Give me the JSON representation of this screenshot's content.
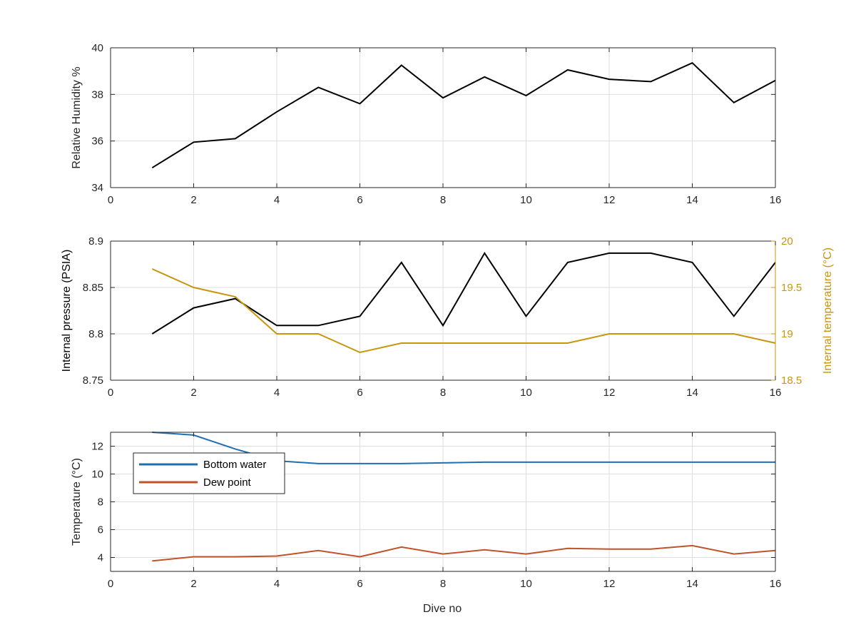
{
  "colors": {
    "black": "#000000",
    "gold": "#c8960c",
    "blue": "#1f6fb2",
    "orange": "#c0532a",
    "grid": "#dedede",
    "axis": "#262626"
  },
  "xlabel": "Dive no",
  "chart_data": [
    {
      "type": "line",
      "x": [
        1,
        2,
        3,
        4,
        5,
        6,
        7,
        8,
        9,
        10,
        11,
        12,
        13,
        14,
        15,
        16
      ],
      "xlim": [
        0,
        16
      ],
      "xticks": [
        "0",
        "2",
        "4",
        "6",
        "8",
        "10",
        "12",
        "14",
        "16"
      ],
      "ylabel": "Relative Humidity %",
      "ylim": [
        34,
        40
      ],
      "yticks": [
        "34",
        "36",
        "38",
        "40"
      ],
      "grid": true,
      "series": [
        {
          "color": "#000000",
          "values": [
            34.85,
            35.95,
            36.1,
            37.25,
            38.3,
            37.6,
            39.25,
            37.85,
            38.75,
            37.95,
            39.05,
            38.65,
            38.55,
            39.35,
            37.65,
            38.6
          ]
        }
      ]
    },
    {
      "type": "line",
      "x": [
        1,
        2,
        3,
        4,
        5,
        6,
        7,
        8,
        9,
        10,
        11,
        12,
        13,
        14,
        15,
        16
      ],
      "xlim": [
        0,
        16
      ],
      "xticks": [
        "0",
        "2",
        "4",
        "6",
        "8",
        "10",
        "12",
        "14",
        "16"
      ],
      "ylabel": "Internal pressure (PSIA)",
      "ylim": [
        8.75,
        8.9
      ],
      "yticks": [
        "8.75",
        "8.8",
        "8.85",
        "8.9"
      ],
      "y2label": "Internal temperature (°C)",
      "y2lim": [
        18.5,
        20
      ],
      "y2ticks": [
        "18.5",
        "19",
        "19.5",
        "20"
      ],
      "grid": true,
      "series": [
        {
          "axis": "left",
          "color": "#000000",
          "values": [
            8.8,
            8.828,
            8.838,
            8.809,
            8.809,
            8.819,
            8.877,
            8.809,
            8.887,
            8.819,
            8.877,
            8.887,
            8.887,
            8.877,
            8.819,
            8.877
          ]
        },
        {
          "axis": "right",
          "color": "#c8960c",
          "values": [
            19.7,
            19.5,
            19.4,
            19.0,
            19.0,
            18.8,
            18.9,
            18.9,
            18.9,
            18.9,
            18.9,
            19.0,
            19.0,
            19.0,
            19.0,
            18.9
          ]
        }
      ]
    },
    {
      "type": "line",
      "x": [
        1,
        2,
        3,
        4,
        5,
        6,
        7,
        8,
        9,
        10,
        11,
        12,
        13,
        14,
        15,
        16
      ],
      "xlim": [
        0,
        16
      ],
      "xticks": [
        "0",
        "2",
        "4",
        "6",
        "8",
        "10",
        "12",
        "14",
        "16"
      ],
      "xlabel": "Dive no",
      "ylabel": "Temperature (°C)",
      "ylim": [
        3,
        13
      ],
      "yticks": [
        "4",
        "6",
        "8",
        "10",
        "12"
      ],
      "grid": true,
      "legend": "top-left",
      "series": [
        {
          "name": "Bottom water",
          "color": "#1f6fb2",
          "values": [
            13.1,
            12.8,
            11.8,
            10.95,
            10.75,
            10.75,
            10.75,
            10.8,
            10.85,
            10.85,
            10.85,
            10.85,
            10.85,
            10.85,
            10.85,
            10.85
          ]
        },
        {
          "name": "Dew point",
          "color": "#c0532a",
          "values": [
            3.75,
            4.05,
            4.05,
            4.1,
            4.5,
            4.05,
            4.75,
            4.25,
            4.55,
            4.25,
            4.65,
            4.6,
            4.6,
            4.85,
            4.25,
            4.5
          ]
        }
      ]
    }
  ]
}
